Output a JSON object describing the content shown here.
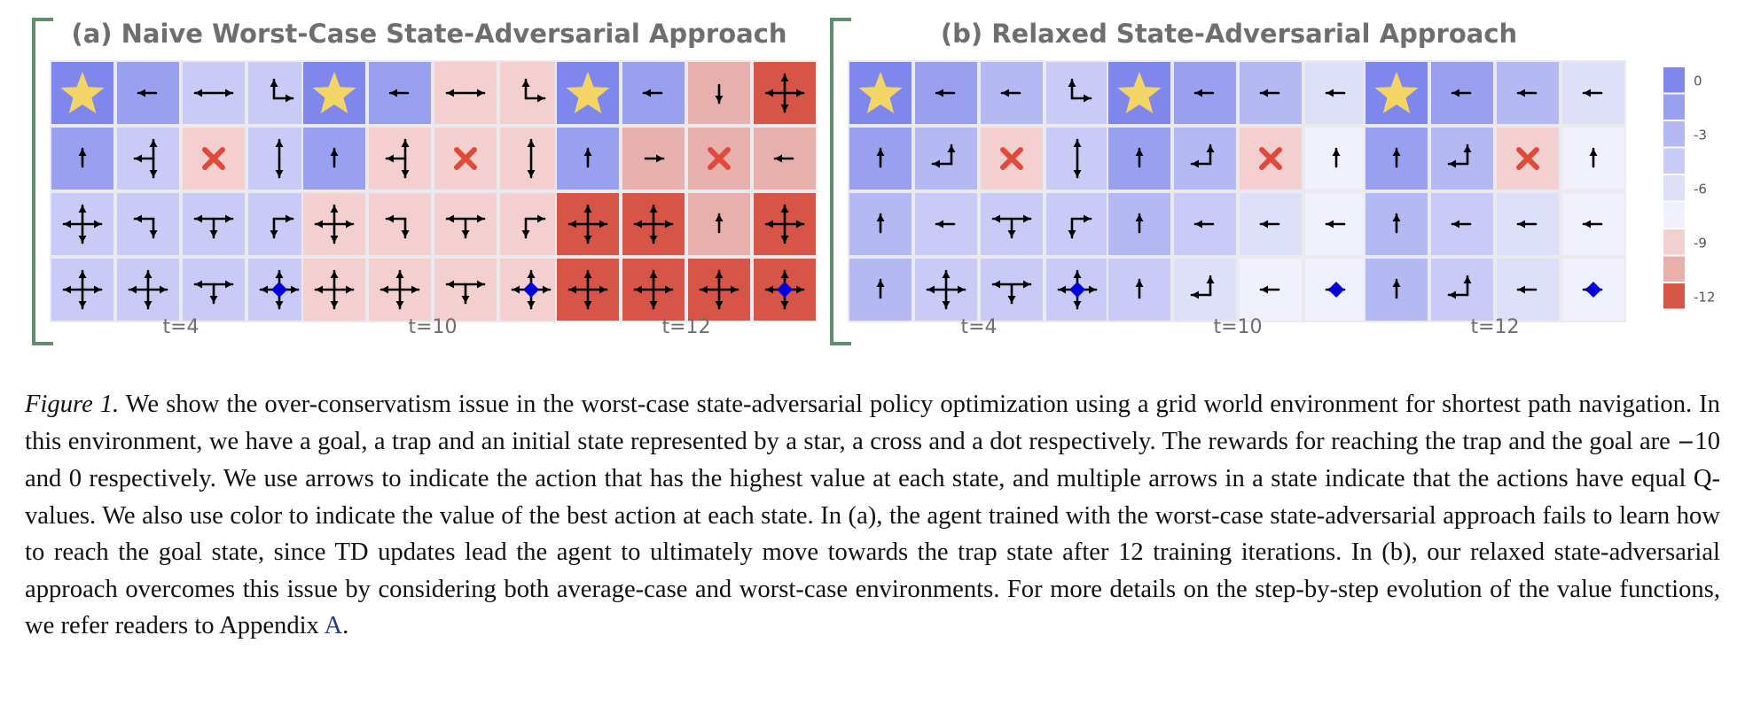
{
  "colors": {
    "bracket": "#5f8f6d",
    "cell_gap": "#e9e9ee",
    "arrow": "#000000",
    "star": "#f3d565",
    "cross": "#e04a3a",
    "dot": "#0000dd",
    "levels": {
      "A": "#7f86ec",
      "B": "#9aa0f0",
      "C": "#b4b8f3",
      "D": "#c9cbf6",
      "E": "#dedff9",
      "F": "#f0f0fc",
      "P": "#f3d0cf",
      "Q": "#e7b0ad",
      "R": "#d75546"
    }
  },
  "colorbar": {
    "levels": [
      "A",
      "B",
      "C",
      "D",
      "E",
      "F",
      "P",
      "Q",
      "R"
    ],
    "ticks": [
      {
        "label": "0",
        "at": 0
      },
      {
        "label": "-3",
        "at": 2
      },
      {
        "label": "-6",
        "at": 4
      },
      {
        "label": "-9",
        "at": 6
      },
      {
        "label": "-12",
        "at": 8
      }
    ]
  },
  "panels": [
    {
      "title": "(a) Naive Worst-Case State-Adversarial Approach",
      "grids": [
        {
          "label": "t=4",
          "cells": [
            [
              "A:star",
              "B:L",
              "D:LR",
              "D:UR"
            ],
            [
              "B:U",
              "D:UDL",
              "P:cross",
              "D:UD"
            ],
            [
              "D:UDLR",
              "D:LD",
              "D:LRD",
              "D:RD"
            ],
            [
              "D:UDLR",
              "D:UDLR",
              "D:LRD",
              "D:UDLR+dot"
            ]
          ]
        },
        {
          "label": "t=10",
          "cells": [
            [
              "A:star",
              "B:L",
              "P:LR",
              "P:UR"
            ],
            [
              "B:U",
              "P:UDL",
              "P:cross",
              "P:UD"
            ],
            [
              "P:UDLR",
              "P:LD",
              "P:LRD",
              "P:RD"
            ],
            [
              "P:UDLR",
              "P:UDLR",
              "P:LRD",
              "P:UDLR+dot"
            ]
          ]
        },
        {
          "label": "t=12",
          "cells": [
            [
              "A:star",
              "B:L",
              "Q:D",
              "R:UDLR"
            ],
            [
              "B:U",
              "Q:R",
              "Q:cross",
              "Q:L"
            ],
            [
              "R:UDLR",
              "R:UDLR",
              "Q:U",
              "R:UDLR"
            ],
            [
              "R:UDLR",
              "R:UDLR",
              "R:UDLR",
              "R:UDLR+dot"
            ]
          ]
        }
      ]
    },
    {
      "title": "(b) Relaxed State-Adversarial Approach",
      "grids": [
        {
          "label": "t=4",
          "cells": [
            [
              "A:star",
              "B:L",
              "C:L",
              "D:UR"
            ],
            [
              "B:U",
              "C:UL",
              "P:cross",
              "D:UD"
            ],
            [
              "C:U",
              "D:L",
              "D:LRD",
              "D:RD"
            ],
            [
              "C:U",
              "D:UDLR",
              "D:LRD",
              "D:UDLR+dot"
            ]
          ]
        },
        {
          "label": "t=10",
          "cells": [
            [
              "A:star",
              "B:L",
              "C:L",
              "E:L"
            ],
            [
              "B:U",
              "C:UL",
              "P:cross",
              "F:U"
            ],
            [
              "C:U",
              "D:L",
              "E:L",
              "F:L"
            ],
            [
              "D:U",
              "E:UL",
              "F:L",
              "F:L+dot"
            ]
          ]
        },
        {
          "label": "t=12",
          "cells": [
            [
              "A:star",
              "B:L",
              "C:L",
              "E:L"
            ],
            [
              "B:U",
              "C:UL",
              "P:cross",
              "F:U"
            ],
            [
              "C:U",
              "D:L",
              "E:L",
              "F:L"
            ],
            [
              "C:U",
              "D:UL",
              "E:L",
              "F:L+dot"
            ]
          ]
        }
      ]
    }
  ],
  "caption": {
    "label": "Figure 1.",
    "text_1": " We show the over-conservatism issue in the worst-case state-adversarial policy optimization using a grid world environment for shortest path navigation. In this environment, we have a goal, a trap and an initial state represented by a star, a cross and a dot respectively. The rewards for reaching the trap and the goal are ",
    "minus": "−",
    "text_2": "10 and 0 respectively. We use arrows to indicate the action that has the highest value at each state, and multiple arrows in a state indicate that the actions have equal Q-values. We also use color to indicate the value of the best action at each state. In (a), the agent trained with the worst-case state-adversarial approach fails to learn how to reach the goal state, since TD updates lead the agent to ultimately move towards the trap state after 12 training iterations. In (b), our relaxed state-adversarial approach overcomes this issue by considering both average-case and worst-case environments. For more details on the step-by-step evolution of the value functions, we refer readers to Appendix ",
    "link": "A",
    "text_3": "."
  }
}
